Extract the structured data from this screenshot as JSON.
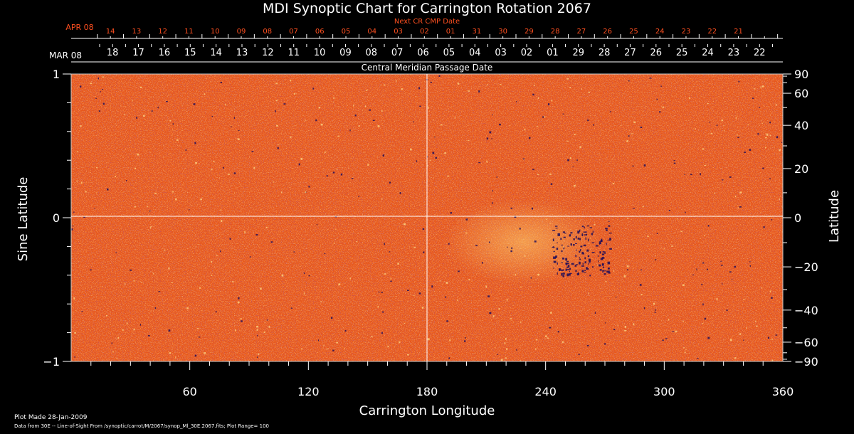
{
  "chart_data": {
    "type": "heatmap",
    "title": "MDI Synoptic Chart for Carrington Rotation 2067",
    "xlabel": "Carrington Longitude",
    "ylabel_left": "Sine Latitude",
    "ylabel_right": "Latitude",
    "xlim": [
      0,
      360
    ],
    "ylim_sine": [
      -1,
      1
    ],
    "x_ticks": [
      60,
      120,
      180,
      240,
      300,
      360
    ],
    "y_ticks_sine": [
      {
        "value": 1,
        "label": "1"
      },
      {
        "value": 0,
        "label": "0"
      },
      {
        "value": -1,
        "label": "−1"
      }
    ],
    "lat_ticks": [
      {
        "deg": 90,
        "label": "90"
      },
      {
        "deg": 60,
        "label": "60"
      },
      {
        "deg": 40,
        "label": "40"
      },
      {
        "deg": 20,
        "label": "20"
      },
      {
        "deg": 0,
        "label": "0"
      },
      {
        "deg": -20,
        "label": "−20"
      },
      {
        "deg": -40,
        "label": "−40"
      },
      {
        "deg": -60,
        "label": "−60"
      },
      {
        "deg": -90,
        "label": "−90"
      }
    ],
    "grid": "crosshair at 180° longitude and 0 latitude",
    "colormap": [
      "#1a0a5a",
      "#7a1a3a",
      "#d43a10",
      "#f0601a",
      "#ff9a2a",
      "#ffe08a"
    ],
    "next_cr_axis": {
      "title": "Next CR CMP Date",
      "month_label": "APR 08",
      "labels": [
        "14",
        "13",
        "12",
        "11",
        "10",
        "09",
        "08",
        "07",
        "06",
        "05",
        "04",
        "03",
        "02",
        "01",
        "31",
        "30",
        "29",
        "28",
        "27",
        "26",
        "25",
        "24",
        "23",
        "22",
        "21"
      ],
      "color": "#ff5020"
    },
    "cmp_axis": {
      "title": "Central Meridian Passage Date",
      "month_label": "MAR 08",
      "labels": [
        "18",
        "17",
        "16",
        "15",
        "14",
        "13",
        "12",
        "11",
        "10",
        "09",
        "08",
        "07",
        "06",
        "05",
        "04",
        "03",
        "02",
        "01",
        "29",
        "28",
        "27",
        "26",
        "25",
        "24",
        "23",
        "22"
      ]
    },
    "footer": {
      "plot_made": "Plot Made 28-Jan-2009",
      "data_source": "Data from 30E -- Line-of-Sight From /synoptic/carrot/M/2067/synop_Ml_30E.2067.fits; Plot Range=  100"
    }
  }
}
